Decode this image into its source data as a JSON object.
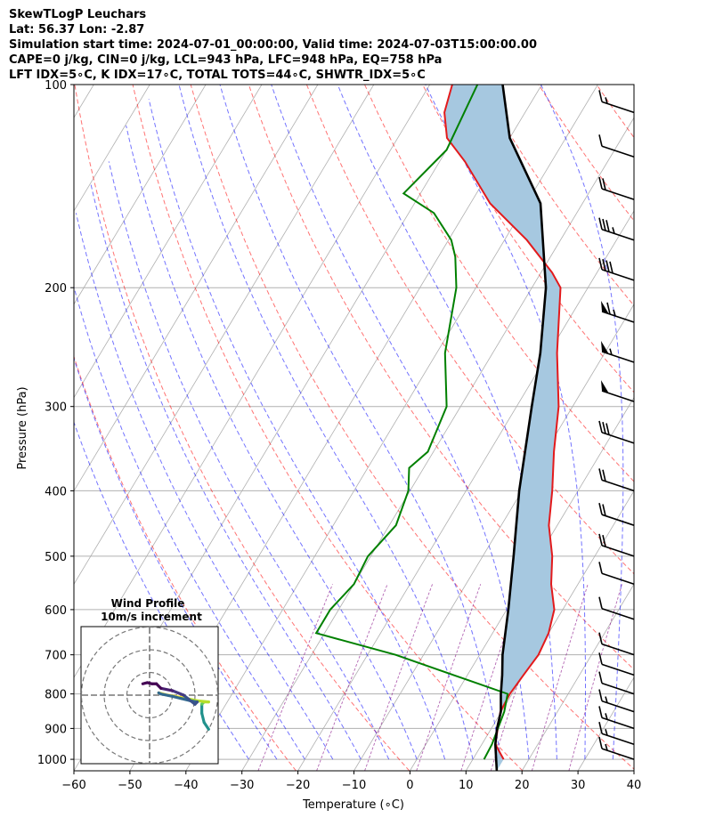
{
  "header": {
    "title": "SkewTLogP Leuchars",
    "location": "Lat: 56.37   Lon: -2.87",
    "times": "Simulation start time: 2024-07-01_00:00:00, Valid time: 2024-07-03T15:00:00.00",
    "indices_1": "CAPE=0 j/kg, CIN=0 j/kg, LCL=943 hPa, LFC=948 hPa, EQ=758 hPa",
    "indices_2": "LFT IDX=5∘C, K IDX=17∘C, TOTAL TOTS=44∘C, SHWTR_IDX=5∘C"
  },
  "chart_data": {
    "type": "line",
    "xlabel": "Temperature (∘C)",
    "ylabel": "Pressure (hPa)",
    "xlim": [
      -60,
      40
    ],
    "ylim": [
      1040,
      100
    ],
    "log_y": true,
    "skew": true,
    "x_ticks": [
      "−60",
      "−50",
      "−40",
      "−30",
      "−20",
      "−10",
      "0",
      "10",
      "20",
      "30",
      "40"
    ],
    "y_ticks": [
      "100",
      "200",
      "300",
      "400",
      "500",
      "600",
      "700",
      "800",
      "900",
      "1000"
    ],
    "grid": true,
    "colors": {
      "temperature": "#e31a1c",
      "dewpoint": "#008000",
      "parcel": "#000000",
      "shade": "#a6c8e0",
      "dry_adiabat": "#ff0000",
      "moist_adiabat": "#0000ff",
      "mixing_ratio": "#800080"
    },
    "series": [
      {
        "key": "temperature",
        "points": [
          [
            15.5,
            1000
          ],
          [
            12.4,
            950
          ],
          [
            9.8,
            850
          ],
          [
            9.6,
            800
          ],
          [
            10.0,
            750
          ],
          [
            10.5,
            700
          ],
          [
            10.0,
            650
          ],
          [
            8.5,
            600
          ],
          [
            5.2,
            550
          ],
          [
            2.4,
            500
          ],
          [
            -1.5,
            450
          ],
          [
            -4.6,
            400
          ],
          [
            -8.5,
            350
          ],
          [
            -12.5,
            300
          ],
          [
            -18.5,
            250
          ],
          [
            -24.9,
            200
          ],
          [
            -28.0,
            190
          ],
          [
            -36.0,
            170
          ],
          [
            -46.5,
            150
          ],
          [
            -55.5,
            130
          ],
          [
            -61.2,
            120
          ],
          [
            -64.4,
            110
          ],
          [
            -66.0,
            100
          ]
        ]
      },
      {
        "key": "dewpoint",
        "points": [
          [
            12.0,
            1000
          ],
          [
            11.8,
            950
          ],
          [
            10.5,
            850
          ],
          [
            9.2,
            800
          ],
          [
            -2.5,
            750
          ],
          [
            -15.0,
            700
          ],
          [
            -31.5,
            650
          ],
          [
            -31.5,
            600
          ],
          [
            -30.0,
            550
          ],
          [
            -30.5,
            500
          ],
          [
            -28.8,
            450
          ],
          [
            -30.3,
            400
          ],
          [
            -32.6,
            370
          ],
          [
            -31.0,
            350
          ],
          [
            -32.5,
            300
          ],
          [
            -38.5,
            250
          ],
          [
            -43.5,
            200
          ],
          [
            -47.0,
            180
          ],
          [
            -49.5,
            170
          ],
          [
            -55.5,
            155
          ],
          [
            -63.0,
            145
          ],
          [
            -60.0,
            125
          ],
          [
            -61.5,
            100
          ]
        ]
      },
      {
        "key": "parcel",
        "points": [
          [
            15.5,
            1040
          ],
          [
            12.4,
            950
          ],
          [
            11.0,
            900
          ],
          [
            9.9,
            850
          ],
          [
            8.0,
            800
          ],
          [
            6.2,
            750
          ],
          [
            4.1,
            700
          ],
          [
            0.3,
            600
          ],
          [
            -4.5,
            500
          ],
          [
            -10.5,
            400
          ],
          [
            -17.3,
            300
          ],
          [
            -21.5,
            250
          ],
          [
            -27.5,
            200
          ],
          [
            -37.5,
            150
          ],
          [
            -50.0,
            120
          ],
          [
            -57.0,
            100
          ]
        ]
      }
    ],
    "wind_barbs": [
      {
        "p": 1000,
        "n_full": 1,
        "n_half": 1,
        "n_flag": 0
      },
      {
        "p": 950,
        "n_full": 1,
        "n_half": 1,
        "n_flag": 0
      },
      {
        "p": 900,
        "n_full": 1,
        "n_half": 1,
        "n_flag": 0
      },
      {
        "p": 850,
        "n_full": 1,
        "n_half": 1,
        "n_flag": 0
      },
      {
        "p": 800,
        "n_full": 1,
        "n_half": 0,
        "n_flag": 0
      },
      {
        "p": 750,
        "n_full": 1,
        "n_half": 0,
        "n_flag": 0
      },
      {
        "p": 700,
        "n_full": 1,
        "n_half": 0,
        "n_flag": 0
      },
      {
        "p": 620,
        "n_full": 1,
        "n_half": 0,
        "n_flag": 0
      },
      {
        "p": 550,
        "n_full": 1,
        "n_half": 0,
        "n_flag": 0
      },
      {
        "p": 500,
        "n_full": 2,
        "n_half": 0,
        "n_flag": 0
      },
      {
        "p": 450,
        "n_full": 2,
        "n_half": 0,
        "n_flag": 0
      },
      {
        "p": 400,
        "n_full": 2,
        "n_half": 0,
        "n_flag": 0
      },
      {
        "p": 340,
        "n_full": 3,
        "n_half": 0,
        "n_flag": 0
      },
      {
        "p": 295,
        "n_full": 0,
        "n_half": 0,
        "n_flag": 1
      },
      {
        "p": 258,
        "n_full": 0,
        "n_half": 1,
        "n_flag": 1
      },
      {
        "p": 225,
        "n_full": 1,
        "n_half": 1,
        "n_flag": 1
      },
      {
        "p": 195,
        "n_full": 4,
        "n_half": 0,
        "n_flag": 0
      },
      {
        "p": 170,
        "n_full": 3,
        "n_half": 1,
        "n_flag": 0
      },
      {
        "p": 148,
        "n_full": 2,
        "n_half": 0,
        "n_flag": 0
      },
      {
        "p": 128,
        "n_full": 1,
        "n_half": 0,
        "n_flag": 0
      },
      {
        "p": 110,
        "n_full": 1,
        "n_half": 1,
        "n_flag": 0
      }
    ]
  },
  "inset": {
    "title_1": "Wind Profile",
    "title_2": "10m/s increment",
    "hodograph": {
      "rings": [
        10,
        20,
        30
      ],
      "points": [
        {
          "u": 26,
          "v": -15,
          "c": "#21918c"
        },
        {
          "u": 24,
          "v": -12,
          "c": "#21918c"
        },
        {
          "u": 23,
          "v": -8,
          "c": "#21918c"
        },
        {
          "u": 23,
          "v": -4,
          "c": "#21918c"
        },
        {
          "u": 24,
          "v": -3,
          "c": "#5ec962"
        },
        {
          "u": 26,
          "v": -3,
          "c": "#b5de2b"
        },
        {
          "u": 21,
          "v": -2.5,
          "c": "#b5de2b"
        },
        {
          "u": 14,
          "v": -1,
          "c": "#b5de2b"
        },
        {
          "u": 8,
          "v": 0,
          "c": "#fde725"
        },
        {
          "u": 4,
          "v": 1,
          "c": "#fde725"
        },
        {
          "u": 5,
          "v": 0.5,
          "c": "#31688e"
        },
        {
          "u": 10,
          "v": -0.5,
          "c": "#31688e"
        },
        {
          "u": 14,
          "v": -1.5,
          "c": "#31688e"
        },
        {
          "u": 18,
          "v": -2.5,
          "c": "#31688e"
        },
        {
          "u": 21,
          "v": -3,
          "c": "#31688e"
        },
        {
          "u": 20,
          "v": -4,
          "c": "#3b528b"
        },
        {
          "u": 15,
          "v": 0,
          "c": "#3b528b"
        },
        {
          "u": 10,
          "v": 2,
          "c": "#443983"
        },
        {
          "u": 5,
          "v": 3,
          "c": "#481f70"
        },
        {
          "u": 3,
          "v": 5,
          "c": "#440154"
        },
        {
          "u": 1,
          "v": 5,
          "c": "#440154"
        },
        {
          "u": -1,
          "v": 5.5,
          "c": "#440154"
        },
        {
          "u": -3,
          "v": 5,
          "c": "#440154"
        }
      ]
    }
  }
}
